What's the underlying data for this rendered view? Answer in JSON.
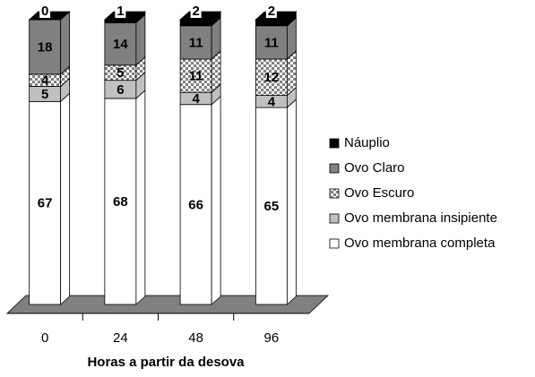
{
  "chart_data": {
    "type": "bar",
    "stacked": true,
    "x_label": "Horas a partir da desova",
    "categories": [
      "0",
      "24",
      "48",
      "96"
    ],
    "series": [
      {
        "name": "Ovo membrana completa",
        "color": "#ffffff",
        "values": [
          67,
          68,
          66,
          65
        ]
      },
      {
        "name": "Ovo membrana insipiente",
        "color": "#c0c0c0",
        "values": [
          5,
          6,
          4,
          4
        ]
      },
      {
        "name": "Ovo Escuro",
        "color": "checker",
        "values": [
          4,
          5,
          11,
          12
        ]
      },
      {
        "name": "Ovo Claro",
        "color": "#808080",
        "values": [
          18,
          14,
          11,
          11
        ]
      },
      {
        "name": "Náuplio",
        "color": "#000000",
        "values": [
          0,
          1,
          2,
          2
        ]
      }
    ]
  }
}
